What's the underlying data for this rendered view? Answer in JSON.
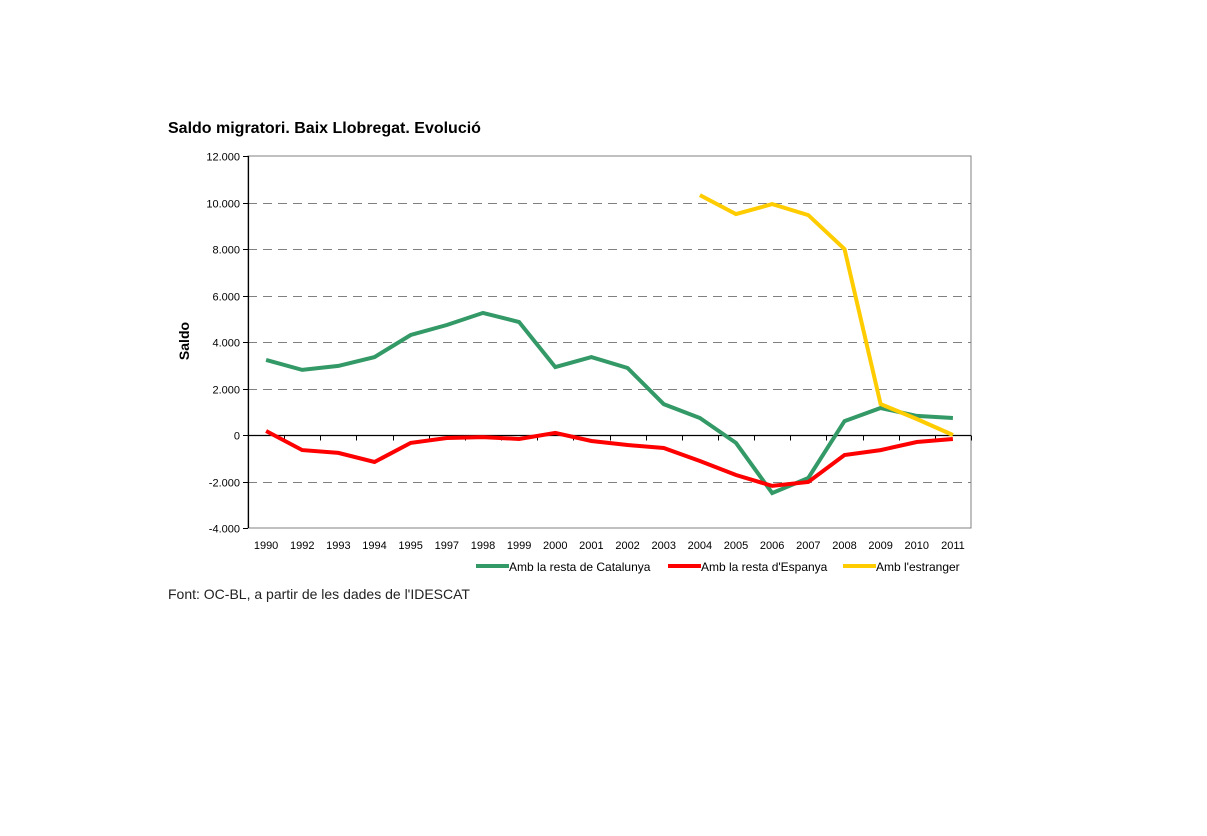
{
  "chart_data": {
    "type": "line",
    "title": "Saldo migratori. Baix Llobregat. Evolució",
    "xlabel": "",
    "ylabel": "Saldo",
    "ylim": [
      -4000,
      12000
    ],
    "yticks": [
      -4000,
      -2000,
      0,
      2000,
      4000,
      6000,
      8000,
      10000,
      12000
    ],
    "ytick_labels": [
      "-4.000",
      "-2.000",
      "0",
      "2.000",
      "4.000",
      "6.000",
      "8.000",
      "10.000",
      "12.000"
    ],
    "grid": "horizontal dashed",
    "legend_position": "bottom-right",
    "categories": [
      "1990",
      "1992",
      "1993",
      "1994",
      "1995",
      "1997",
      "1998",
      "1999",
      "2000",
      "2001",
      "2002",
      "2003",
      "2004",
      "2005",
      "2006",
      "2007",
      "2008",
      "2009",
      "2010",
      "2011"
    ],
    "series": [
      {
        "name": "Amb la resta de Catalunya",
        "color": "#339966",
        "values": [
          3230,
          2800,
          2970,
          3350,
          4300,
          4730,
          5250,
          4860,
          2920,
          3350,
          2880,
          1330,
          730,
          -340,
          -2500,
          -1850,
          600,
          1160,
          820,
          730
        ]
      },
      {
        "name": "Amb la resta d'Espanya",
        "color": "#ff0000",
        "values": [
          170,
          -650,
          -770,
          -1160,
          -340,
          -130,
          -90,
          -170,
          90,
          -260,
          -430,
          -560,
          -1120,
          -1720,
          -2190,
          -2020,
          -860,
          -650,
          -300,
          -170
        ]
      },
      {
        "name": "Amb l'estranger",
        "color": "#ffcc00",
        "values": [
          null,
          null,
          null,
          null,
          null,
          null,
          null,
          null,
          null,
          null,
          null,
          null,
          10320,
          9500,
          9930,
          9460,
          8000,
          1330,
          690,
          0
        ]
      }
    ]
  },
  "source_note": "Font: OC-BL, a partir de les dades de l'IDESCAT"
}
